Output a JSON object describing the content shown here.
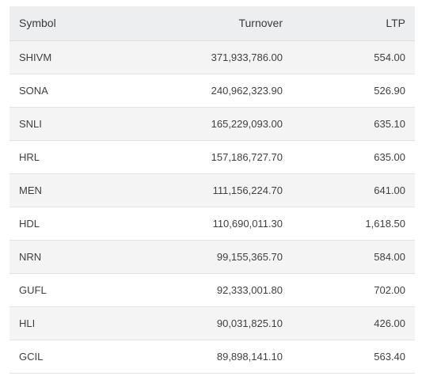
{
  "table": {
    "headers": {
      "symbol": "Symbol",
      "turnover": "Turnover",
      "ltp": "LTP"
    },
    "rows": [
      {
        "symbol": "SHIVM",
        "turnover": "371,933,786.00",
        "ltp": "554.00"
      },
      {
        "symbol": "SONA",
        "turnover": "240,962,323.90",
        "ltp": "526.90"
      },
      {
        "symbol": "SNLI",
        "turnover": "165,229,093.00",
        "ltp": "635.10"
      },
      {
        "symbol": "HRL",
        "turnover": "157,186,727.70",
        "ltp": "635.00"
      },
      {
        "symbol": "MEN",
        "turnover": "111,156,224.70",
        "ltp": "641.00"
      },
      {
        "symbol": "HDL",
        "turnover": "110,690,011.30",
        "ltp": "1,618.50"
      },
      {
        "symbol": "NRN",
        "turnover": "99,155,365.70",
        "ltp": "584.00"
      },
      {
        "symbol": "GUFL",
        "turnover": "92,333,001.80",
        "ltp": "702.00"
      },
      {
        "symbol": "HLI",
        "turnover": "90,031,825.10",
        "ltp": "426.00"
      },
      {
        "symbol": "GCIL",
        "turnover": "89,898,141.10",
        "ltp": "563.40"
      }
    ]
  }
}
